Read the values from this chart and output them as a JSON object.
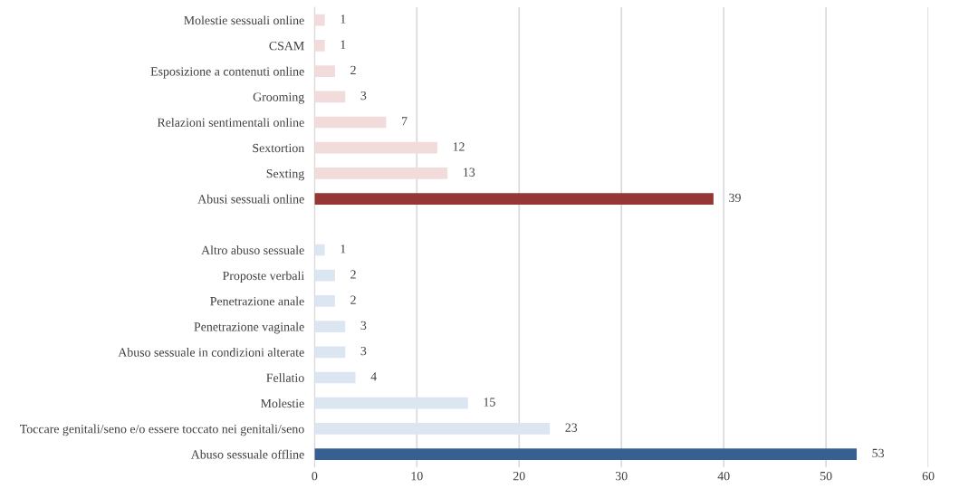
{
  "chart_data": {
    "type": "bar",
    "orientation": "horizontal",
    "categories": [
      "Molestie sessuali online",
      "CSAM",
      "Esposizione a contenuti online",
      "Grooming",
      "Relazioni sentimentali online",
      "Sextortion",
      "Sexting",
      "Abusi sessuali online",
      null,
      "Altro abuso sessuale",
      "Proposte verbali",
      "Penetrazione anale",
      "Penetrazione vaginale",
      "Abuso sessuale in condizioni alterate",
      "Fellatio",
      "Molestie",
      "Toccare genitali/seno e/o essere toccato nei genitali/seno",
      "Abuso sessuale offline"
    ],
    "values": [
      1,
      1,
      2,
      3,
      7,
      12,
      13,
      39,
      null,
      1,
      2,
      2,
      3,
      3,
      4,
      15,
      23,
      53
    ],
    "colors": [
      "#f2dcdb",
      "#f2dcdb",
      "#f2dcdb",
      "#f2dcdb",
      "#f2dcdb",
      "#f2dcdb",
      "#f2dcdb",
      "#953735",
      "#ffffff",
      "#dce6f2",
      "#dce6f2",
      "#dce6f2",
      "#dce6f2",
      "#dce6f2",
      "#dce6f2",
      "#dce6f2",
      "#dce6f2",
      "#376092"
    ],
    "xlim": [
      0,
      60
    ],
    "xticks": [
      0,
      10,
      20,
      30,
      40,
      50,
      60
    ],
    "grid": "x",
    "data_labels": true
  }
}
